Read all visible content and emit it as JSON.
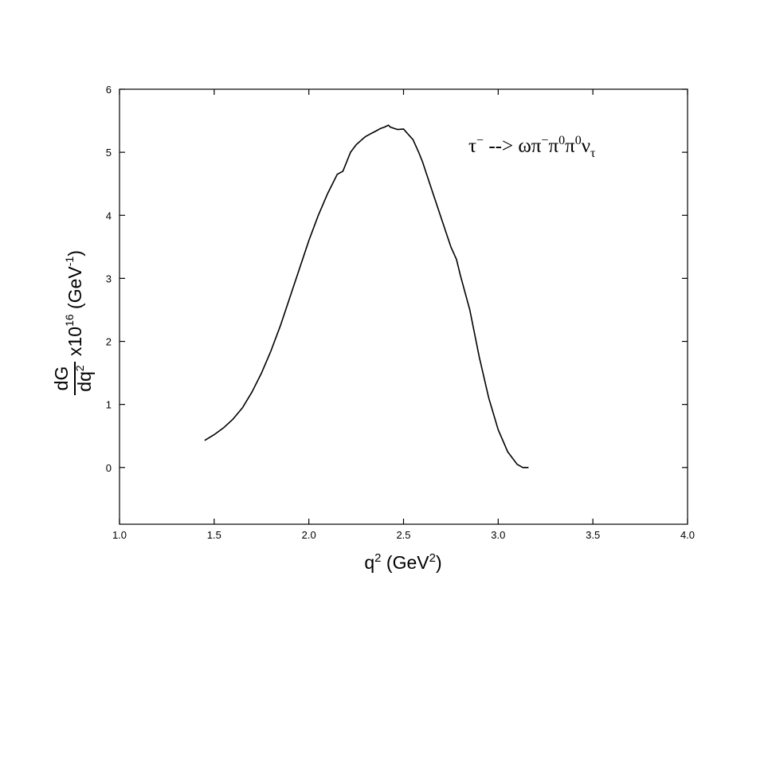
{
  "chart_data": {
    "type": "line",
    "title": "",
    "xlabel": {
      "base": "q",
      "sup1": "2",
      "mid": " (GeV",
      "sup2": "2",
      "end": ")"
    },
    "ylabel": {
      "frac_num": "dG",
      "frac_den_base": "dq",
      "frac_den_sup": "2",
      "mult": " x10",
      "mult_sup": "16",
      "unit": "  (GeV",
      "unit_sup": "-1",
      "unit_end": ")"
    },
    "annotation": {
      "tau": "τ",
      "tau_sup": "−",
      "arrow": " --> ",
      "omega_pi": "ωπ",
      "pim_sup": "−",
      "pi1": "π",
      "pi1_sup": "0",
      "pi2": "π",
      "pi2_sup": "0",
      "nu": "ν",
      "nu_sub": "τ"
    },
    "xlim": [
      1.0,
      4.0
    ],
    "ylim": [
      -0.9,
      6.0
    ],
    "xticks": [
      1.0,
      1.5,
      2.0,
      2.5,
      3.0,
      3.5,
      4.0
    ],
    "xtick_labels": [
      "1.0",
      "1.5",
      "2.0",
      "2.5",
      "3.0",
      "3.5",
      "4.0"
    ],
    "yticks": [
      0,
      1,
      2,
      3,
      4,
      5,
      6
    ],
    "ytick_labels": [
      "0",
      "1",
      "2",
      "3",
      "4",
      "5",
      "6"
    ],
    "grid": false,
    "series": [
      {
        "color": "#000000",
        "x": [
          1.45,
          1.5,
          1.55,
          1.6,
          1.65,
          1.7,
          1.75,
          1.8,
          1.85,
          1.9,
          1.95,
          2.0,
          2.05,
          2.1,
          2.15,
          2.18,
          2.2,
          2.22,
          2.25,
          2.28,
          2.3,
          2.33,
          2.35,
          2.38,
          2.4,
          2.42,
          2.43,
          2.45,
          2.47,
          2.5,
          2.52,
          2.55,
          2.58,
          2.6,
          2.65,
          2.7,
          2.75,
          2.78,
          2.8,
          2.85,
          2.9,
          2.95,
          3.0,
          3.05,
          3.1,
          3.13,
          3.16
        ],
        "y": [
          0.43,
          0.52,
          0.63,
          0.77,
          0.95,
          1.2,
          1.5,
          1.85,
          2.25,
          2.7,
          3.15,
          3.6,
          4.0,
          4.35,
          4.65,
          4.7,
          4.85,
          5.0,
          5.12,
          5.2,
          5.25,
          5.3,
          5.33,
          5.38,
          5.4,
          5.43,
          5.4,
          5.38,
          5.36,
          5.37,
          5.3,
          5.2,
          5.0,
          4.85,
          4.4,
          3.95,
          3.5,
          3.3,
          3.05,
          2.5,
          1.75,
          1.1,
          0.6,
          0.25,
          0.05,
          0.0,
          0.0
        ]
      }
    ]
  }
}
